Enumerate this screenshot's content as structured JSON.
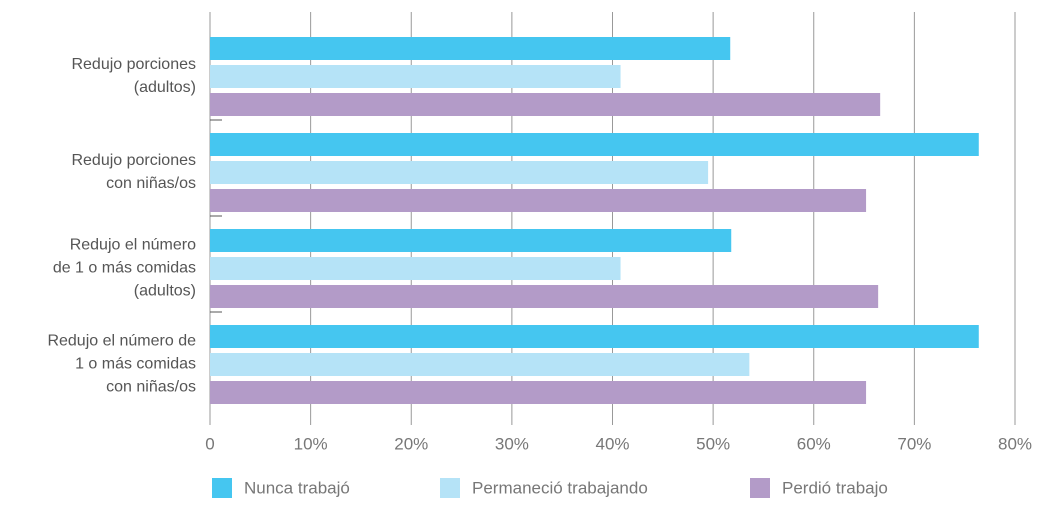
{
  "chart_data": {
    "type": "hbar",
    "categories": [
      [
        "Redujo porciones",
        "(adultos)"
      ],
      [
        "Redujo porciones",
        "con niñas/os"
      ],
      [
        "Redujo el número",
        "de 1 o más comidas",
        "(adultos)"
      ],
      [
        "Redujo el número de",
        "1 o más comidas",
        "con niñas/os"
      ]
    ],
    "series": [
      {
        "name": "Nunca trabajó",
        "color": "#45c6f0",
        "values": [
          51.7,
          76.4,
          51.8,
          76.4
        ]
      },
      {
        "name": "Permaneció trabajando",
        "color": "#b5e3f7",
        "values": [
          40.8,
          49.5,
          40.8,
          53.6
        ]
      },
      {
        "name": "Perdió trabajo",
        "color": "#b39bc8",
        "values": [
          66.6,
          65.2,
          66.4,
          65.2
        ]
      }
    ],
    "xlim": [
      0,
      80
    ],
    "xticks": [
      0,
      {
        "value": 10,
        "label": "10%"
      },
      {
        "value": 20,
        "label": "20%"
      },
      {
        "value": 30,
        "label": "30%"
      },
      {
        "value": 40,
        "label": "40%"
      },
      {
        "value": 50,
        "label": "50%"
      },
      {
        "value": 60,
        "label": "60%"
      },
      {
        "value": 70,
        "label": "70%"
      },
      {
        "value": 80,
        "label": "80%"
      }
    ],
    "grid": true,
    "legend": "bottom"
  }
}
